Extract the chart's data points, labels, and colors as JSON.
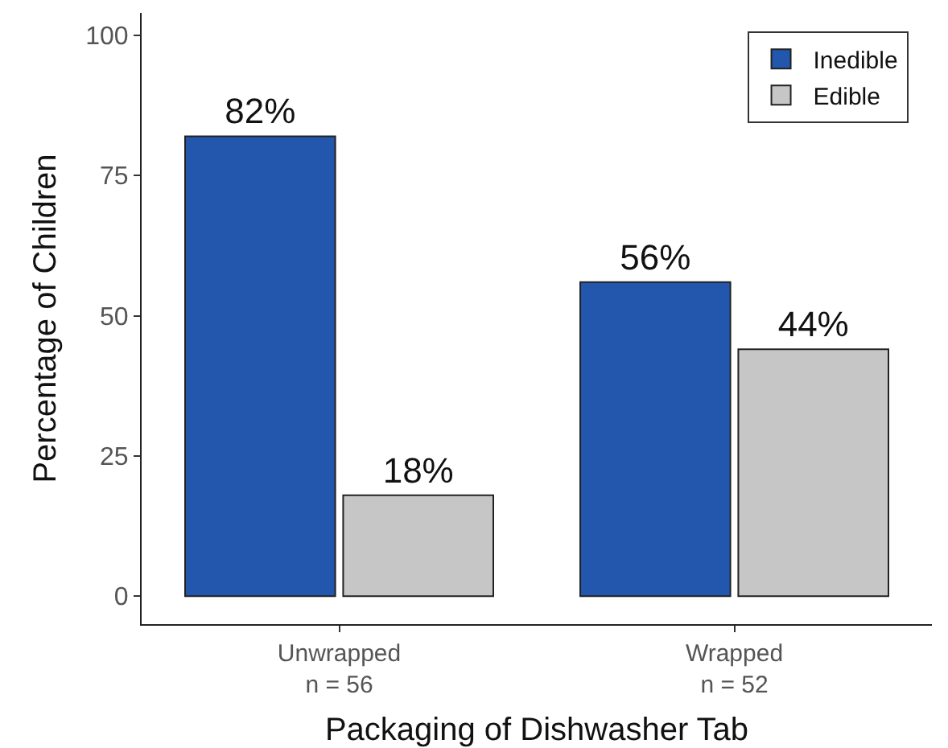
{
  "chart_data": {
    "type": "bar",
    "xlabel": "Packaging of Dishwasher Tab",
    "ylabel": "Percentage of Children",
    "categories": [
      "Unwrapped\nn = 56",
      "Wrapped\nn = 52"
    ],
    "series": [
      {
        "name": "Inedible",
        "color": "#2257ad",
        "values": [
          82,
          56
        ],
        "value_labels": [
          "82%",
          "56%"
        ]
      },
      {
        "name": "Edible",
        "color": "#c6c6c6",
        "values": [
          18,
          44
        ],
        "value_labels": [
          "18%",
          "44%"
        ]
      }
    ],
    "ylim": [
      -5,
      104
    ],
    "yticks": [
      0,
      25,
      50,
      75,
      100
    ],
    "grid": false,
    "legend": "top right"
  }
}
